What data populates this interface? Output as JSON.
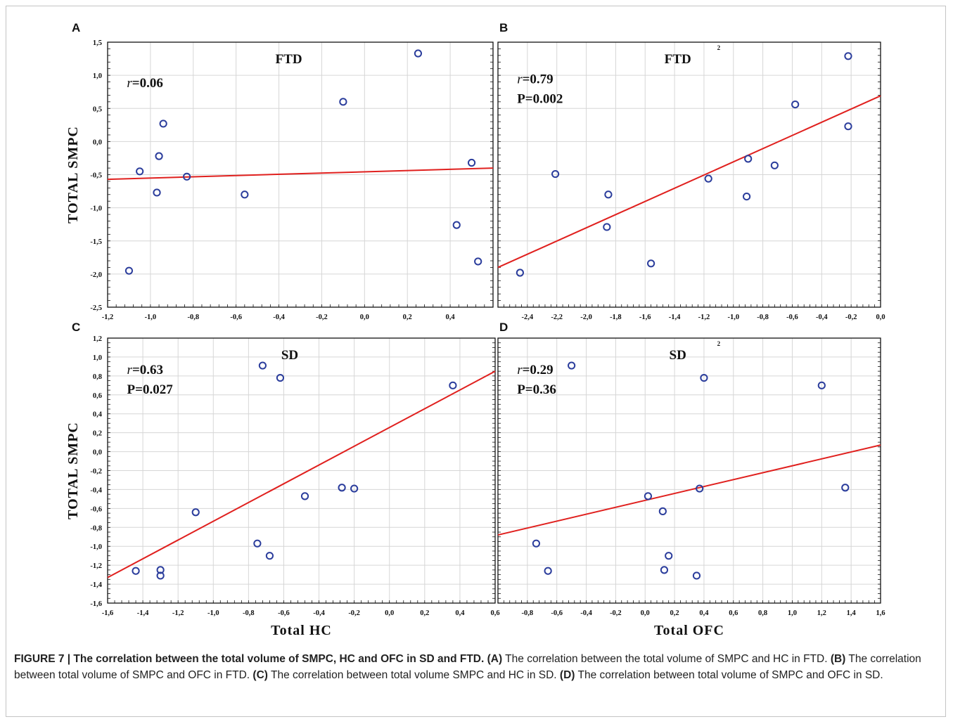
{
  "chart_data": [
    {
      "panel": "A",
      "type": "scatter",
      "title": "FTD",
      "stats": {
        "r_label": "r",
        "r_value": "=0.06",
        "p": ""
      },
      "xlabel": "",
      "ylabel": "TOTAL SMPC",
      "xlim": [
        -1.2,
        0.6
      ],
      "ylim": [
        -2.5,
        1.5
      ],
      "xticks": [
        "-1,2",
        "-1,0",
        "-0,8",
        "-0,6",
        "-0,4",
        "-0,2",
        "0,0",
        "0,2",
        "0,4"
      ],
      "yticks": [
        "-2,5",
        "-2,0",
        "-1,5",
        "-1,0",
        "-0,5",
        "0,0",
        "0,5",
        "1,0",
        "1,5"
      ],
      "grid": true,
      "points": [
        {
          "x": -1.1,
          "y": -1.95
        },
        {
          "x": -1.05,
          "y": -0.45
        },
        {
          "x": -0.97,
          "y": -0.77
        },
        {
          "x": -0.96,
          "y": -0.22
        },
        {
          "x": -0.94,
          "y": 0.27
        },
        {
          "x": -0.83,
          "y": -0.53
        },
        {
          "x": -0.56,
          "y": -0.8
        },
        {
          "x": -0.1,
          "y": 0.6
        },
        {
          "x": 0.25,
          "y": 1.33
        },
        {
          "x": 0.43,
          "y": -1.26
        },
        {
          "x": 0.5,
          "y": -0.32
        },
        {
          "x": 0.53,
          "y": -1.81
        }
      ],
      "fit": {
        "x": [
          -1.2,
          0.6
        ],
        "y": [
          -0.57,
          -0.4
        ]
      }
    },
    {
      "panel": "B",
      "type": "scatter",
      "title": "FTD",
      "marker": "2",
      "stats": {
        "r_label": "r",
        "r_value": "=0.79",
        "p": "P=0.002"
      },
      "xlabel": "",
      "ylabel": "",
      "xlim": [
        -2.6,
        0.0
      ],
      "ylim": [
        -2.5,
        1.5
      ],
      "xticks": [
        "-2,4",
        "-2,2",
        "-2,0",
        "-1,8",
        "-1,6",
        "-1,4",
        "-1,2",
        "-1,0",
        "-0,8",
        "-0,6",
        "-0,4",
        "-0,2",
        "0,0"
      ],
      "yticks": [],
      "grid": true,
      "points": [
        {
          "x": -2.45,
          "y": -1.98
        },
        {
          "x": -2.21,
          "y": -0.49
        },
        {
          "x": -1.85,
          "y": -0.8
        },
        {
          "x": -1.86,
          "y": -1.29
        },
        {
          "x": -1.56,
          "y": -1.84
        },
        {
          "x": -1.17,
          "y": -0.56
        },
        {
          "x": -0.9,
          "y": -0.26
        },
        {
          "x": -0.91,
          "y": -0.83
        },
        {
          "x": -0.72,
          "y": -0.36
        },
        {
          "x": -0.58,
          "y": 0.56
        },
        {
          "x": -0.22,
          "y": 1.29
        },
        {
          "x": -0.22,
          "y": 0.23
        }
      ],
      "fit": {
        "x": [
          -2.6,
          0.0
        ],
        "y": [
          -1.9,
          0.69
        ]
      }
    },
    {
      "panel": "C",
      "type": "scatter",
      "title": "SD",
      "stats": {
        "r_label": "r",
        "r_value": "=0.63",
        "p": "P=0.027"
      },
      "xlabel": "Total HC",
      "ylabel": "TOTAL SMPC",
      "xlim": [
        -1.6,
        0.6
      ],
      "ylim": [
        -1.6,
        1.2
      ],
      "xticks": [
        "-1,6",
        "-1,4",
        "-1,2",
        "-1,0",
        "-0,8",
        "-0,6",
        "-0,4",
        "-0,2",
        "0,0",
        "0,2",
        "0,4",
        "0,6"
      ],
      "yticks": [
        "-1,6",
        "-1,4",
        "-1,2",
        "-1,0",
        "-0,8",
        "-0,6",
        "-0,4",
        "-0,2",
        "0,0",
        "0,2",
        "0,4",
        "0,6",
        "0,8",
        "1,0",
        "1,2"
      ],
      "grid": true,
      "points": [
        {
          "x": -1.44,
          "y": -1.26
        },
        {
          "x": -1.3,
          "y": -1.25
        },
        {
          "x": -1.3,
          "y": -1.31
        },
        {
          "x": -1.1,
          "y": -0.64
        },
        {
          "x": -0.75,
          "y": -0.97
        },
        {
          "x": -0.72,
          "y": 0.91
        },
        {
          "x": -0.68,
          "y": -1.1
        },
        {
          "x": -0.62,
          "y": 0.78
        },
        {
          "x": -0.48,
          "y": -0.47
        },
        {
          "x": -0.27,
          "y": -0.38
        },
        {
          "x": -0.2,
          "y": -0.39
        },
        {
          "x": 0.36,
          "y": 0.7
        }
      ],
      "fit": {
        "x": [
          -1.6,
          0.6
        ],
        "y": [
          -1.33,
          0.85
        ]
      }
    },
    {
      "panel": "D",
      "type": "scatter",
      "title": "SD",
      "marker": "2",
      "stats": {
        "r_label": "r",
        "r_value": "=0.29",
        "p": "P=0.36"
      },
      "xlabel": "Total OFC",
      "ylabel": "",
      "xlim": [
        -1.0,
        1.6
      ],
      "ylim": [
        -1.6,
        1.2
      ],
      "xticks": [
        "-0,8",
        "-0,6",
        "-0,4",
        "-0,2",
        "0,0",
        "0,2",
        "0,4",
        "0,6",
        "0,8",
        "1,0",
        "1,2",
        "1,4",
        "1,6"
      ],
      "yticks": [],
      "grid": true,
      "points": [
        {
          "x": -0.74,
          "y": -0.97
        },
        {
          "x": -0.66,
          "y": -1.26
        },
        {
          "x": -0.5,
          "y": 0.91
        },
        {
          "x": 0.02,
          "y": -0.47
        },
        {
          "x": 0.12,
          "y": -0.63
        },
        {
          "x": 0.13,
          "y": -1.25
        },
        {
          "x": 0.16,
          "y": -1.1
        },
        {
          "x": 0.35,
          "y": -1.31
        },
        {
          "x": 0.37,
          "y": -0.39
        },
        {
          "x": 0.4,
          "y": 0.78
        },
        {
          "x": 1.2,
          "y": 0.7
        },
        {
          "x": 1.36,
          "y": -0.38
        }
      ],
      "fit": {
        "x": [
          -1.0,
          1.6
        ],
        "y": [
          -0.88,
          0.07
        ]
      }
    }
  ],
  "caption": {
    "bold_lead": "FIGURE 7 | The correlation between the total volume of SMPC, HC and OFC in SD and FTD.",
    "a_label": "(A)",
    "a_text": " The correlation between the total volume of SMPC and HC in FTD. ",
    "b_label": "(B)",
    "b_text": " The correlation between total volume of SMPC and OFC in FTD. ",
    "c_label": "(C)",
    "c_text": " The correlation between total volume SMPC and HC in SD. ",
    "d_label": "(D)",
    "d_text": " The correlation between total volume of SMPC and OFC in SD."
  },
  "colors": {
    "points": "#2b3d9c",
    "fit": "#e0201e",
    "grid": "#d6d6d6",
    "frame": "#111111"
  }
}
